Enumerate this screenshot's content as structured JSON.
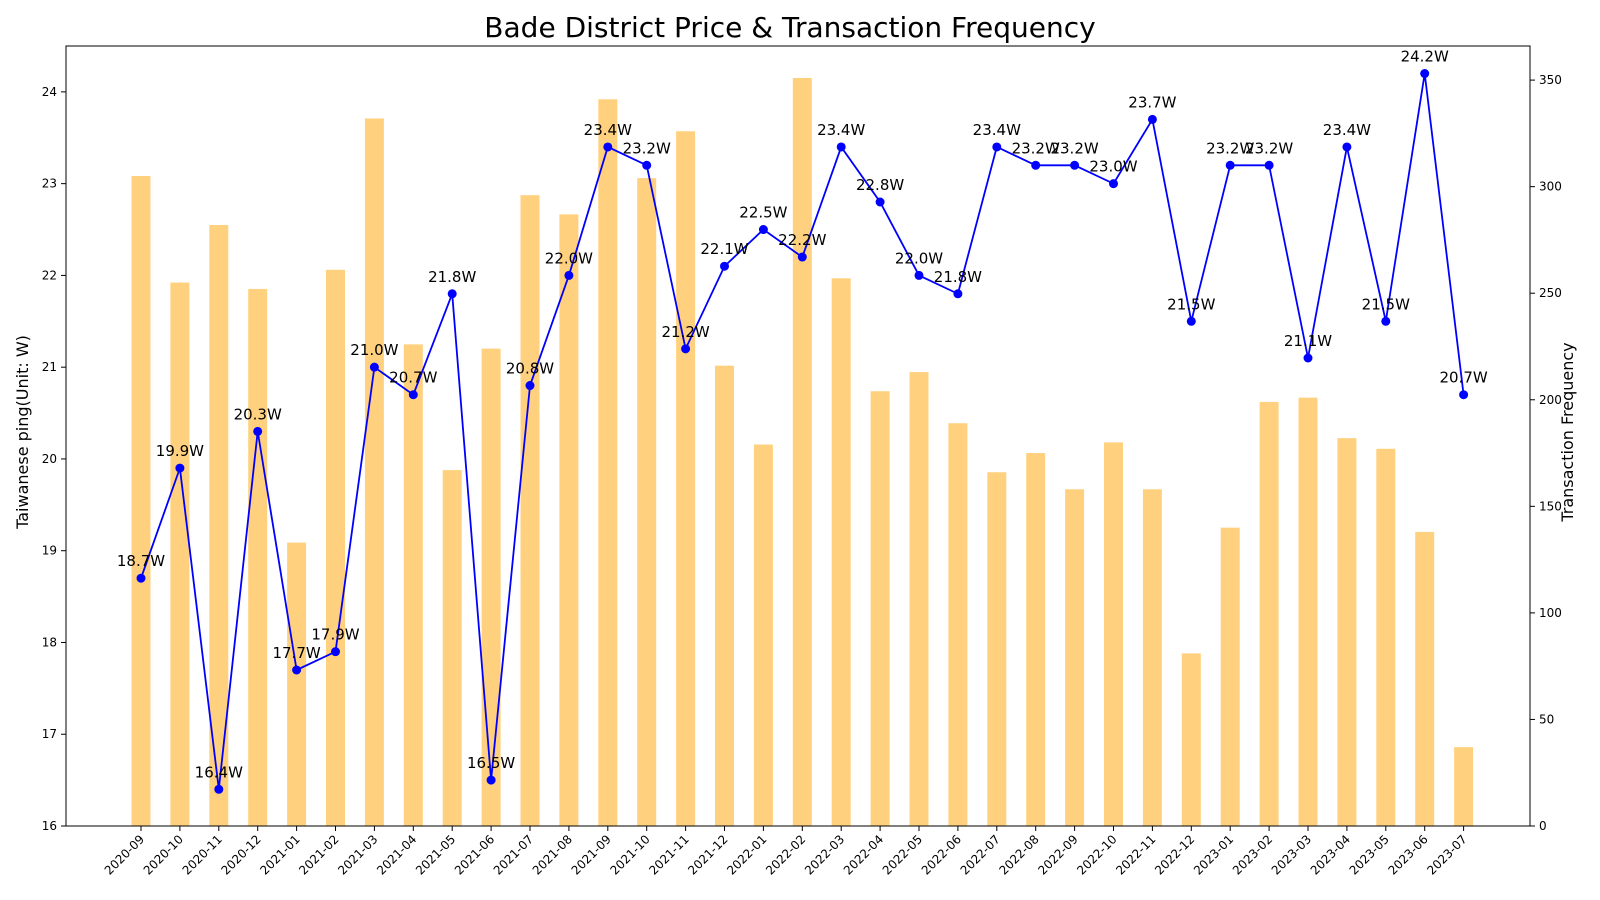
{
  "chart_data": {
    "type": "bar+line",
    "title": "Bade District Price & Transaction Frequency",
    "ylabel_left": "Taiwanese ping(Unit: W)",
    "ylabel_right": "Transaction Frequency",
    "ylim_left": [
      16,
      24.5
    ],
    "ylim_right": [
      0,
      366
    ],
    "yticks_left": [
      16,
      17,
      18,
      19,
      20,
      21,
      22,
      23,
      24
    ],
    "yticks_right": [
      0,
      50,
      100,
      150,
      200,
      250,
      300,
      350
    ],
    "categories": [
      "2020-09",
      "2020-10",
      "2020-11",
      "2020-12",
      "2021-01",
      "2021-02",
      "2021-03",
      "2021-04",
      "2021-05",
      "2021-06",
      "2021-07",
      "2021-08",
      "2021-09",
      "2021-10",
      "2021-11",
      "2021-12",
      "2022-01",
      "2022-02",
      "2022-03",
      "2022-04",
      "2022-05",
      "2022-06",
      "2022-07",
      "2022-08",
      "2022-09",
      "2022-10",
      "2022-11",
      "2022-12",
      "2023-01",
      "2023-02",
      "2023-03",
      "2023-04",
      "2023-05",
      "2023-06",
      "2023-07"
    ],
    "series": [
      {
        "name": "Transaction Frequency",
        "kind": "bar",
        "axis": "right",
        "color": "#FFD17F",
        "values": [
          305,
          255,
          282,
          252,
          133,
          261,
          332,
          226,
          167,
          224,
          296,
          287,
          341,
          304,
          326,
          216,
          179,
          351,
          257,
          204,
          213,
          189,
          166,
          175,
          158,
          180,
          158,
          81,
          140,
          199,
          201,
          182,
          177,
          138,
          37
        ]
      },
      {
        "name": "Price",
        "kind": "line",
        "axis": "left",
        "color": "#0000FF",
        "values": [
          18.7,
          19.9,
          16.4,
          20.3,
          17.7,
          17.9,
          21.0,
          20.7,
          21.8,
          16.5,
          20.8,
          22.0,
          23.4,
          23.2,
          21.2,
          22.1,
          22.5,
          22.2,
          23.4,
          22.8,
          22.0,
          21.8,
          23.4,
          23.2,
          23.2,
          23.0,
          23.7,
          21.5,
          23.2,
          23.2,
          21.1,
          23.4,
          21.5,
          24.2,
          20.7
        ],
        "labels": [
          "18.7W",
          "19.9W",
          "16.4W",
          "20.3W",
          "17.7W",
          "17.9W",
          "21.0W",
          "20.7W",
          "21.8W",
          "16.5W",
          "20.8W",
          "22.0W",
          "23.4W",
          "23.2W",
          "21.2W",
          "22.1W",
          "22.5W",
          "22.2W",
          "23.4W",
          "22.8W",
          "22.0W",
          "21.8W",
          "23.4W",
          "23.2W",
          "23.2W",
          "23.0W",
          "23.7W",
          "21.5W",
          "23.2W",
          "23.2W",
          "21.1W",
          "23.4W",
          "21.5W",
          "24.2W",
          "20.7W"
        ]
      }
    ],
    "grid": false,
    "legend": "none"
  }
}
